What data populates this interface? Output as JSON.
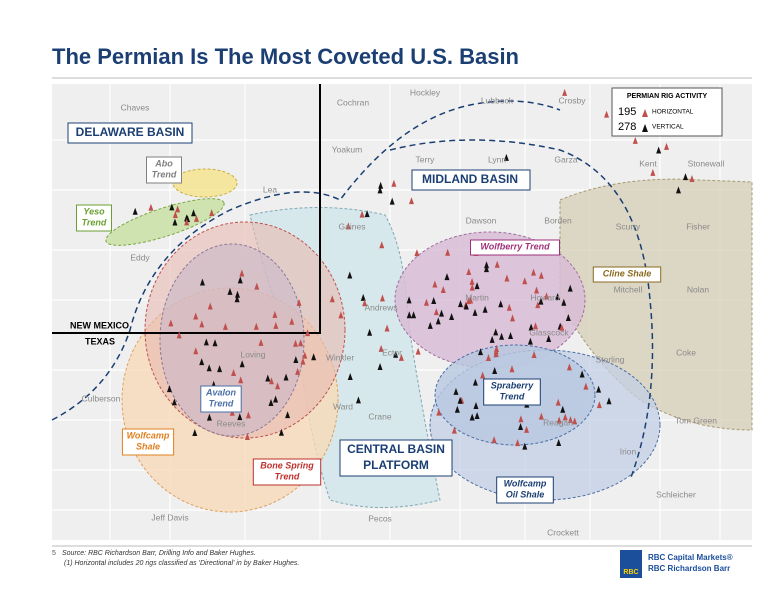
{
  "header": {
    "title": "The Permian Is The Most Coveted U.S. Basin"
  },
  "basins": [
    "DELAWARE BASIN",
    "MIDLAND BASIN",
    "CENTRAL BASIN PLATFORM"
  ],
  "states": [
    "NEW MEXICO",
    "TEXAS"
  ],
  "trends": [
    [
      "Abo",
      "Trend"
    ],
    [
      "Yeso",
      "Trend"
    ],
    [
      "Wolfberry Trend"
    ],
    [
      "Cline Shale"
    ],
    [
      "Avalon",
      "Trend"
    ],
    [
      "Wolfcamp",
      "Shale"
    ],
    [
      "Bone Spring",
      "Trend"
    ],
    [
      "Spraberry",
      "Trend"
    ],
    [
      "Wolfcamp",
      "Oil Shale"
    ]
  ],
  "counties": [
    "Chaves",
    "Cochran",
    "Hockley",
    "Lubbock",
    "Crosby",
    "Yoakum",
    "Terry",
    "Lynn",
    "Garza",
    "Kent",
    "Stonewall",
    "Lea",
    "Gaines",
    "Dawson",
    "Borden",
    "Scurry",
    "Fisher",
    "Eddy",
    "Andrews",
    "Martin",
    "Howard",
    "Mitchell",
    "Nolan",
    "Glasscock",
    "Coke",
    "Loving",
    "Winkler",
    "Ector",
    "Sterling",
    "Culberson",
    "Ward",
    "Crane",
    "Reagan",
    "Tom Green",
    "Reeves",
    "Irion",
    "Schleicher",
    "Jeff Davis",
    "Pecos",
    "Crockett"
  ],
  "legend": {
    "title": "PERMIAN RIG ACTIVITY",
    "rows": [
      {
        "count": "195",
        "label": "HORIZONTAL"
      },
      {
        "count": "278",
        "label": "VERTICAL"
      }
    ]
  },
  "footer": {
    "page": "5",
    "source": "Source:  RBC Richardson Barr, Drilling Info and Baker Hughes.",
    "note": "(1)   Horizontal includes 20 rigs classified as 'Directional' in by Baker Hughes.",
    "logo": "RBC",
    "brand1": "RBC Capital Markets®",
    "brand2": "RBC Richardson Barr"
  }
}
